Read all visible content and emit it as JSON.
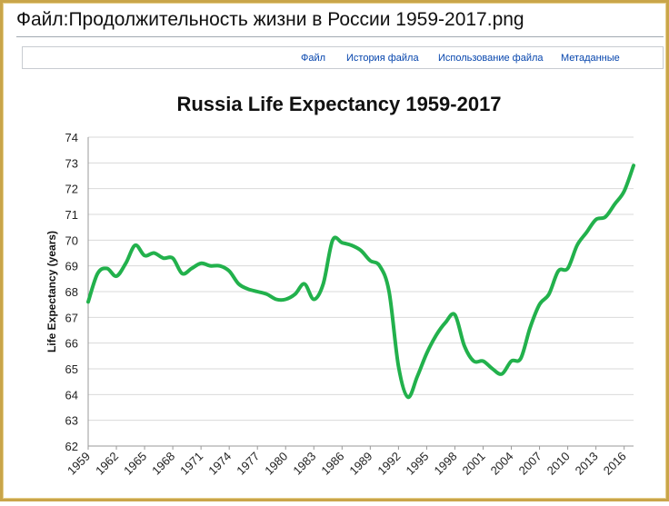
{
  "page": {
    "title": "Файл:Продолжительность жизни в России 1959-2017.png"
  },
  "tabs": [
    {
      "label": "Файл"
    },
    {
      "label": "История файла"
    },
    {
      "label": "Использование файла"
    },
    {
      "label": "Метаданные"
    }
  ],
  "colors": {
    "line": "#22b14c",
    "frame": "#c9a54a",
    "link": "#0645ad"
  },
  "chart_data": {
    "type": "line",
    "title": "Russia Life Expectancy 1959-2017",
    "xlabel": "",
    "ylabel": "Life Expectancy (years)",
    "ylim": [
      62,
      74
    ],
    "yticks": [
      62,
      63,
      64,
      65,
      66,
      67,
      68,
      69,
      70,
      71,
      72,
      73,
      74
    ],
    "xticks": [
      1959,
      1962,
      1965,
      1968,
      1971,
      1974,
      1977,
      1980,
      1983,
      1986,
      1989,
      1992,
      1995,
      1998,
      2001,
      2004,
      2007,
      2010,
      2013,
      2016
    ],
    "grid": true,
    "legend": "none",
    "series": [
      {
        "x": [
          1959,
          1960,
          1961,
          1962,
          1963,
          1964,
          1965,
          1966,
          1967,
          1968,
          1969,
          1970,
          1971,
          1972,
          1973,
          1974,
          1975,
          1976,
          1977,
          1978,
          1979,
          1980,
          1981,
          1982,
          1983,
          1984,
          1985,
          1986,
          1987,
          1988,
          1989,
          1990,
          1991,
          1992,
          1993,
          1994,
          1995,
          1996,
          1997,
          1998,
          1999,
          2000,
          2001,
          2002,
          2003,
          2004,
          2005,
          2006,
          2007,
          2008,
          2009,
          2010,
          2011,
          2012,
          2013,
          2014,
          2015,
          2016,
          2017
        ],
        "values": [
          67.6,
          68.7,
          68.9,
          68.6,
          69.1,
          69.8,
          69.4,
          69.5,
          69.3,
          69.3,
          68.7,
          68.9,
          69.1,
          69.0,
          69.0,
          68.8,
          68.3,
          68.1,
          68.0,
          67.9,
          67.7,
          67.7,
          67.9,
          68.3,
          67.7,
          68.3,
          70.0,
          69.9,
          69.8,
          69.6,
          69.2,
          69.0,
          68.0,
          65.1,
          63.9,
          64.7,
          65.6,
          66.3,
          66.8,
          67.1,
          65.9,
          65.3,
          65.3,
          65.0,
          64.8,
          65.3,
          65.4,
          66.6,
          67.5,
          67.9,
          68.8,
          68.9,
          69.8,
          70.3,
          70.8,
          70.9,
          71.4,
          71.9,
          72.9
        ]
      }
    ]
  }
}
